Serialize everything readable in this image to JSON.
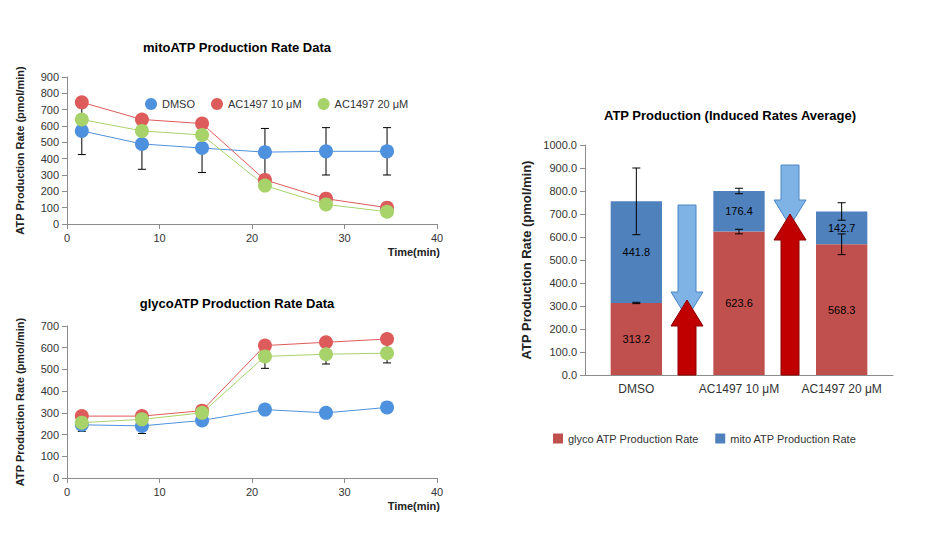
{
  "chart_data": [
    {
      "type": "line",
      "title": "mitoATP Production Rate Data",
      "xlabel": "Time(min)",
      "ylabel": "ATP Production Rate (pmol/min)",
      "x": [
        1.6,
        8.1,
        14.6,
        21.4,
        28,
        34.6
      ],
      "xlim": [
        0,
        40
      ],
      "xticks": [
        0,
        10,
        20,
        30,
        40
      ],
      "ylim": [
        0,
        900
      ],
      "yticks": [
        0,
        100,
        200,
        300,
        400,
        500,
        600,
        700,
        800,
        900
      ],
      "grid": false,
      "legend": "top",
      "marker": "circle",
      "series": [
        {
          "name": "DMSO",
          "color": "#4e91de",
          "values": [
            570,
            490,
            465,
            440,
            445,
            445
          ],
          "errors": [
            145,
            155,
            150,
            145,
            145,
            145
          ]
        },
        {
          "name": "AC1497 10 μM",
          "color": "#dd5b5b",
          "values": [
            745,
            640,
            615,
            270,
            155,
            100
          ]
        },
        {
          "name": "AC1497 20 μM",
          "color": "#a8d26a",
          "values": [
            640,
            570,
            545,
            235,
            120,
            75
          ]
        }
      ]
    },
    {
      "type": "line",
      "title": "glycoATP Production Rate Data",
      "xlabel": "Time(min)",
      "ylabel": "ATP Production Rate (pmol/min)",
      "x": [
        1.6,
        8.1,
        14.6,
        21.4,
        28,
        34.6
      ],
      "xlim": [
        0,
        40
      ],
      "xticks": [
        0,
        10,
        20,
        30,
        40
      ],
      "ylim": [
        0,
        700
      ],
      "yticks": [
        0,
        100,
        200,
        300,
        400,
        500,
        600,
        700
      ],
      "grid": false,
      "marker": "circle",
      "series": [
        {
          "name": "DMSO",
          "color": "#4e91de",
          "values": [
            245,
            240,
            265,
            315,
            300,
            325
          ],
          "errors": [
            30,
            35,
            null,
            null,
            null,
            null
          ]
        },
        {
          "name": "AC1497 10 μM",
          "color": "#dd5b5b",
          "values": [
            285,
            285,
            310,
            610,
            625,
            640
          ]
        },
        {
          "name": "AC1497 20 μM",
          "color": "#a8d26a",
          "values": [
            255,
            270,
            300,
            560,
            570,
            575
          ],
          "errors": [
            null,
            null,
            null,
            55,
            45,
            45
          ]
        }
      ]
    },
    {
      "type": "bar",
      "title": "ATP Production (Induced Rates Average)",
      "ylabel": "ATP Production Rate (pmol/min)",
      "categories": [
        "DMSO",
        "AC1497 10 μM",
        "AC1497 20 μM"
      ],
      "ylim": [
        0,
        1000
      ],
      "yticks": [
        {
          "value": 0,
          "label": "0.0"
        },
        {
          "value": 100,
          "label": "100.0"
        },
        {
          "value": 200,
          "label": "200.0"
        },
        {
          "value": 300,
          "label": "300.0"
        },
        {
          "value": 400,
          "label": "400.0"
        },
        {
          "value": 500,
          "label": "500.0"
        },
        {
          "value": 600,
          "label": "600.0"
        },
        {
          "value": 700,
          "label": "700.0"
        },
        {
          "value": 800,
          "label": "800.0"
        },
        {
          "value": 900,
          "label": "900.0"
        },
        {
          "value": 1000,
          "label": "1000.0"
        }
      ],
      "grid": false,
      "stacked": true,
      "data_labels": true,
      "legend": "bottom",
      "series": [
        {
          "name": "glyco ATP Production Rate",
          "color": "#c0504d",
          "values": [
            313.2,
            623.6,
            568.3
          ],
          "errors": [
            3,
            10,
            45
          ]
        },
        {
          "name": "mito ATP Production Rate",
          "color": "#4f81bd",
          "values": [
            441.8,
            176.4,
            142.7
          ],
          "errors": [
            145,
            12,
            38
          ]
        }
      ]
    }
  ]
}
